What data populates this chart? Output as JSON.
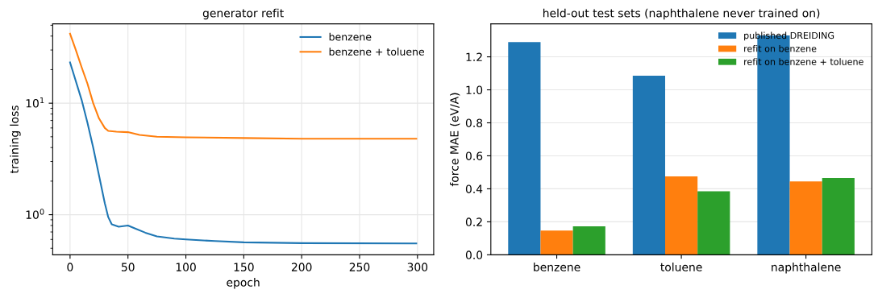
{
  "chart_data": [
    {
      "type": "line",
      "title": "generator refit",
      "xlabel": "epoch",
      "ylabel": "training loss",
      "log": "y",
      "grid": true,
      "legend": "top right",
      "xlim": [
        -15,
        314
      ],
      "xticks": [
        0,
        50,
        100,
        150,
        200,
        250,
        300
      ],
      "ylim": [
        0.437,
        51.5
      ],
      "yticks": [
        {
          "value": 1,
          "label": "10$^{0}$"
        },
        {
          "value": 10,
          "label": "10$^{1}$"
        }
      ],
      "series": [
        {
          "name": "benzene",
          "color": "#1f77b4",
          "x": [
            0,
            10,
            15,
            20,
            25,
            30,
            33,
            36,
            42,
            50,
            55,
            65,
            75,
            90,
            100,
            125,
            150,
            200,
            299
          ],
          "values": [
            23.2,
            10.7,
            6.7,
            4.0,
            2.25,
            1.27,
            0.95,
            0.82,
            0.78,
            0.8,
            0.76,
            0.69,
            0.64,
            0.61,
            0.6,
            0.58,
            0.565,
            0.556,
            0.553
          ]
        },
        {
          "name": "benzene + toluene",
          "color": "#ff7f0e",
          "x": [
            0,
            5,
            10,
            15,
            20,
            25,
            30,
            33,
            40,
            50,
            60,
            75,
            100,
            150,
            200,
            299
          ],
          "values": [
            42,
            30,
            21,
            15,
            10,
            7.3,
            6.0,
            5.65,
            5.55,
            5.5,
            5.2,
            5.0,
            4.95,
            4.87,
            4.8,
            4.8
          ]
        }
      ]
    },
    {
      "type": "bar",
      "title": "held-out test sets (naphthalene never trained on)",
      "ylabel": "force MAE (eV/A)",
      "grid": "y",
      "legend": "top right",
      "categories": [
        "benzene",
        "toluene",
        "naphthalene"
      ],
      "ylim": [
        0,
        1.4
      ],
      "yticks": [
        {
          "value": 0,
          "label": "0.0"
        },
        {
          "value": 0.2,
          "label": "0.2"
        },
        {
          "value": 0.4,
          "label": "0.4"
        },
        {
          "value": 0.6,
          "label": "0.6"
        },
        {
          "value": 0.8,
          "label": "0.8"
        },
        {
          "value": 1.0,
          "label": "1.0"
        },
        {
          "value": 1.2,
          "label": "1.2"
        }
      ],
      "series": [
        {
          "name": "published DREIDING",
          "color": "#1f77b4",
          "values": [
            1.29,
            1.085,
            1.33
          ]
        },
        {
          "name": "refit on benzene",
          "color": "#ff7f0e",
          "values": [
            0.147,
            0.475,
            0.445
          ]
        },
        {
          "name": "refit on benzene + toluene",
          "color": "#2ca02c",
          "values": [
            0.172,
            0.385,
            0.465
          ]
        }
      ]
    }
  ]
}
